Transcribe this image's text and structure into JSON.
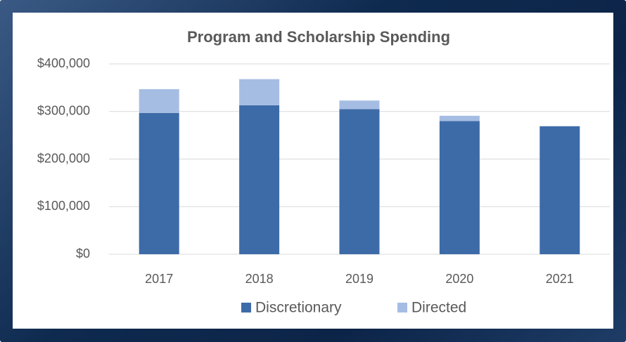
{
  "chart_data": {
    "type": "stacked_bar",
    "title": "Program and Scholarship Spending",
    "categories": [
      "2017",
      "2018",
      "2019",
      "2020",
      "2021"
    ],
    "series": [
      {
        "name": "Discretionary",
        "color": "#3d6ba8",
        "values": [
          297000,
          313000,
          305000,
          280000,
          269000
        ]
      },
      {
        "name": "Directed",
        "color": "#a6bde3",
        "values": [
          50000,
          55000,
          18000,
          11000,
          0
        ]
      }
    ],
    "ylim": [
      0,
      400000
    ],
    "yticks": [
      {
        "value": 0,
        "label": "$0"
      },
      {
        "value": 100000,
        "label": "$100,000"
      },
      {
        "value": 200000,
        "label": "$200,000"
      },
      {
        "value": 300000,
        "label": "$300,000"
      },
      {
        "value": 400000,
        "label": "$400,000"
      }
    ],
    "grid": true
  }
}
